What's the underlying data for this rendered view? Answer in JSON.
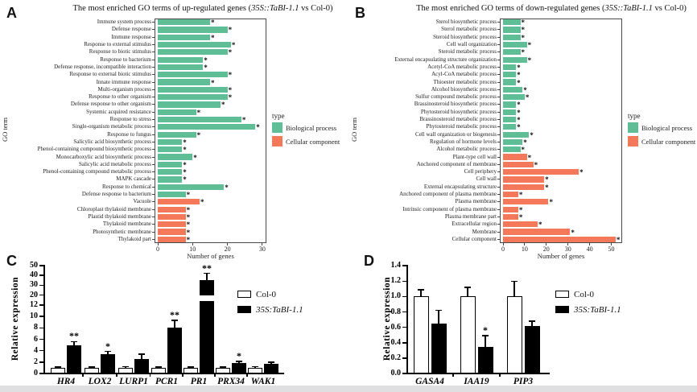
{
  "figure": {
    "bottom_strip_color": "#dfdfe1"
  },
  "colors": {
    "biological_process": "#5FBE96",
    "cellular_component": "#F4785A",
    "bar_black": "#000000",
    "bar_white": "#ffffff"
  },
  "panels": {
    "a": {
      "label": "A",
      "title_prefix": "The most enriched GO terms of up-regulated genes (",
      "title_italic": "35S::TaBI-1.1",
      "title_suffix": " vs Col-0)",
      "ylabel": "GO term",
      "xlabel": "Number of genes",
      "legend": {
        "title": "type",
        "items": [
          {
            "label": "Biological process",
            "color": "#5FBE96"
          },
          {
            "label": "Cellular component",
            "color": "#F4785A"
          }
        ]
      }
    },
    "b": {
      "label": "B",
      "title_prefix": "The most enriched GO terms of down-regulated genes (",
      "title_italic": "35S::TaBI-1.1",
      "title_suffix": " vs Col-0)",
      "ylabel": "GO term",
      "xlabel": "Number of genes",
      "legend": {
        "title": "type",
        "items": [
          {
            "label": "Biological process",
            "color": "#5FBE96"
          },
          {
            "label": "Cellular component",
            "color": "#F4785A"
          }
        ]
      }
    },
    "c": {
      "label": "C",
      "ylabel": "Relative expression",
      "legend": {
        "items": [
          {
            "label": "Col-0"
          },
          {
            "label": "35S:TaBI-1.1"
          }
        ]
      }
    },
    "d": {
      "label": "D",
      "ylabel": "Relative expression",
      "legend": {
        "items": [
          {
            "label": "Col-0"
          },
          {
            "label": "35S:TaBI-1.1"
          }
        ]
      }
    }
  },
  "chart_data": [
    {
      "panel": "A",
      "type": "bar",
      "orientation": "horizontal",
      "title": "The most enriched GO terms of up-regulated genes (35S::TaBI-1.1 vs Col-0)",
      "xlabel": "Number of genes",
      "ylabel": "GO term",
      "xlim": [
        0,
        30
      ],
      "xticks": [
        0,
        10,
        20,
        30
      ],
      "legend_title": "type",
      "rows": [
        {
          "label": "Immune system process",
          "value": 15,
          "type": "Biological process",
          "sig": "*"
        },
        {
          "label": "Defense response",
          "value": 20,
          "type": "Biological process",
          "sig": "*"
        },
        {
          "label": "Immune response",
          "value": 15,
          "type": "Biological process",
          "sig": "*"
        },
        {
          "label": "Response to external stimulus",
          "value": 21,
          "type": "Biological process",
          "sig": "*"
        },
        {
          "label": "Response to biotic stimulus",
          "value": 20,
          "type": "Biological process",
          "sig": "*"
        },
        {
          "label": "Response to bacterium",
          "value": 13,
          "type": "Biological process",
          "sig": "*"
        },
        {
          "label": "Defense response, incompatible interaction",
          "value": 13,
          "type": "Biological process",
          "sig": "*"
        },
        {
          "label": "Response to external biotic stimulus",
          "value": 20,
          "type": "Biological process",
          "sig": "*"
        },
        {
          "label": "Innate immune response",
          "value": 15,
          "type": "Biological process",
          "sig": "*"
        },
        {
          "label": "Multi-organism process",
          "value": 20,
          "type": "Biological process",
          "sig": "*"
        },
        {
          "label": "Response to other organism",
          "value": 20,
          "type": "Biological process",
          "sig": "*"
        },
        {
          "label": "Defense response to other organism",
          "value": 18,
          "type": "Biological process",
          "sig": "*"
        },
        {
          "label": "Systemic acquired resistance",
          "value": 11,
          "type": "Biological process",
          "sig": "*"
        },
        {
          "label": "Response to stress",
          "value": 24,
          "type": "Biological process",
          "sig": "*"
        },
        {
          "label": "Single-organism metabolic process",
          "value": 28,
          "type": "Biological process",
          "sig": "*"
        },
        {
          "label": "Response to fungus",
          "value": 11,
          "type": "Biological process",
          "sig": "*"
        },
        {
          "label": "Salicylic acid biosynthetic process",
          "value": 7,
          "type": "Biological process",
          "sig": "*"
        },
        {
          "label": "Phenol-containing compound biosynthetic process",
          "value": 7,
          "type": "Biological process",
          "sig": "*"
        },
        {
          "label": "Monocarboxylic acid biosynthetic process",
          "value": 10,
          "type": "Biological process",
          "sig": "*"
        },
        {
          "label": "Salicylic acid metabolic process",
          "value": 7,
          "type": "Biological process",
          "sig": "*"
        },
        {
          "label": "Phenol-containing compound metabolic process",
          "value": 7,
          "type": "Biological process",
          "sig": "*"
        },
        {
          "label": "MAPK cascade",
          "value": 7,
          "type": "Biological process",
          "sig": "*"
        },
        {
          "label": "Response to chemical",
          "value": 19,
          "type": "Biological process",
          "sig": "*"
        },
        {
          "label": "Defense response to bacterium",
          "value": 8,
          "type": "Biological process",
          "sig": "*"
        },
        {
          "label": "Vacuole",
          "value": 12,
          "type": "Cellular component",
          "sig": "*"
        },
        {
          "label": "Chloroplast thylakoid membrane",
          "value": 8,
          "type": "Cellular component",
          "sig": "*"
        },
        {
          "label": "Plastid thylakoid membrane",
          "value": 8,
          "type": "Cellular component",
          "sig": "*"
        },
        {
          "label": "Thylakoid membrane",
          "value": 8,
          "type": "Cellular component",
          "sig": "*"
        },
        {
          "label": "Photosynthetic membrane",
          "value": 8,
          "type": "Cellular component",
          "sig": "*"
        },
        {
          "label": "Thylakoid part",
          "value": 8,
          "type": "Cellular component",
          "sig": "*"
        }
      ]
    },
    {
      "panel": "B",
      "type": "bar",
      "orientation": "horizontal",
      "title": "The most enriched GO terms of down-regulated genes (35S::TaBI-1.1 vs Col-0)",
      "xlabel": "Number of genes",
      "ylabel": "GO term",
      "xlim": [
        0,
        55
      ],
      "xticks": [
        0,
        10,
        20,
        30,
        40,
        50
      ],
      "legend_title": "type",
      "rows": [
        {
          "label": "Sterol biosynthetic process",
          "value": 8,
          "type": "Biological process",
          "sig": "*"
        },
        {
          "label": "Sterol metabolic process",
          "value": 8,
          "type": "Biological process",
          "sig": "*"
        },
        {
          "label": "Steroid biosynthetic process",
          "value": 8,
          "type": "Biological process",
          "sig": "*"
        },
        {
          "label": "Cell wall organization",
          "value": 11,
          "type": "Biological process",
          "sig": "*"
        },
        {
          "label": "Steroid metabolic process",
          "value": 8,
          "type": "Biological process",
          "sig": "*"
        },
        {
          "label": "External encapsulating structure organization",
          "value": 11,
          "type": "Biological process",
          "sig": "*"
        },
        {
          "label": "Acetyl-CoA metabolic process",
          "value": 6,
          "type": "Biological process",
          "sig": "*"
        },
        {
          "label": "Acyl-CoA metabolic process",
          "value": 6,
          "type": "Biological process",
          "sig": "*"
        },
        {
          "label": "Thioester metabolic process",
          "value": 6,
          "type": "Biological process",
          "sig": "*"
        },
        {
          "label": "Alcohol biosynthetic process",
          "value": 9,
          "type": "Biological process",
          "sig": "*"
        },
        {
          "label": "Sulfur compound metabolic process",
          "value": 10,
          "type": "Biological process",
          "sig": "*"
        },
        {
          "label": "Brassinosteroid biosynthetic process",
          "value": 6,
          "type": "Biological process",
          "sig": "*"
        },
        {
          "label": "Phytosteroid biosynthetic process",
          "value": 6,
          "type": "Biological process",
          "sig": "*"
        },
        {
          "label": "Brassinosteroid metabolic process",
          "value": 6,
          "type": "Biological process",
          "sig": "*"
        },
        {
          "label": "Phytosteroid metabolic process",
          "value": 6,
          "type": "Biological process",
          "sig": "*"
        },
        {
          "label": "Cell wall organization or biogenesis",
          "value": 12,
          "type": "Biological process",
          "sig": "*"
        },
        {
          "label": "Regulation of hormone levels",
          "value": 9,
          "type": "Biological process",
          "sig": "*"
        },
        {
          "label": "Alcohol metabolic process",
          "value": 8,
          "type": "Biological process",
          "sig": "*"
        },
        {
          "label": "Plant-type cell wall",
          "value": 11,
          "type": "Cellular component",
          "sig": "*"
        },
        {
          "label": "Anchored component of membrane",
          "value": 14,
          "type": "Cellular component",
          "sig": "*"
        },
        {
          "label": "Cell periphery",
          "value": 35,
          "type": "Cellular component",
          "sig": "*"
        },
        {
          "label": "Cell wall",
          "value": 19,
          "type": "Cellular component",
          "sig": "*"
        },
        {
          "label": "External encapsulating structure",
          "value": 19,
          "type": "Cellular component",
          "sig": "*"
        },
        {
          "label": "Anchored component of plasma membrane",
          "value": 7,
          "type": "Cellular component",
          "sig": "*"
        },
        {
          "label": "Plasma membrane",
          "value": 21,
          "type": "Cellular component",
          "sig": "*"
        },
        {
          "label": "Intrinsic component of plasma membrane",
          "value": 7,
          "type": "Cellular component",
          "sig": "*"
        },
        {
          "label": "Plasma membrane part",
          "value": 7,
          "type": "Cellular component",
          "sig": "*"
        },
        {
          "label": "Extracellular region",
          "value": 16,
          "type": "Cellular component",
          "sig": "*"
        },
        {
          "label": "Membrane",
          "value": 31,
          "type": "Cellular component",
          "sig": "*"
        },
        {
          "label": "Cellular component",
          "value": 52,
          "type": "Cellular component",
          "sig": "*"
        }
      ]
    },
    {
      "panel": "C",
      "type": "bar",
      "orientation": "vertical",
      "ylabel": "Relative expression",
      "categories": [
        "HR4",
        "LOX2",
        "LURP1",
        "PCR1",
        "PR1",
        "PRX34",
        "WAK1"
      ],
      "series": [
        {
          "name": "Col-0",
          "fill": "white",
          "values": [
            1.0,
            1.0,
            1.0,
            1.0,
            1.0,
            1.0,
            1.0
          ],
          "errors": [
            0.15,
            0.15,
            0.2,
            0.1,
            0.15,
            0.15,
            0.2
          ]
        },
        {
          "name": "35S:TaBI-1.1",
          "fill": "black",
          "values": [
            5.0,
            3.4,
            2.6,
            8.0,
            35,
            1.9,
            1.75
          ],
          "errors": [
            0.6,
            0.45,
            0.8,
            1.3,
            7,
            0.25,
            0.2
          ]
        }
      ],
      "significance": [
        "**",
        "*",
        "",
        "**",
        "**",
        "*",
        ""
      ],
      "yaxis": {
        "broken": true,
        "segments": [
          {
            "ticks": [
              0,
              2,
              4,
              6,
              8,
              10,
              12
            ],
            "labels": [
              "0",
              "2",
              "4",
              "6",
              "8",
              "10",
              "12"
            ]
          },
          {
            "ticks": [
              20,
              30,
              40,
              50
            ],
            "labels": [
              "20",
              "30",
              "40",
              "50"
            ]
          }
        ]
      }
    },
    {
      "panel": "D",
      "type": "bar",
      "orientation": "vertical",
      "ylabel": "Relative expression",
      "categories": [
        "GASA4",
        "IAA19",
        "PIP3"
      ],
      "series": [
        {
          "name": "Col-0",
          "fill": "white",
          "values": [
            1.0,
            1.0,
            1.0
          ],
          "errors": [
            0.09,
            0.12,
            0.2
          ]
        },
        {
          "name": "35S:TaBI-1.1",
          "fill": "black",
          "values": [
            0.65,
            0.35,
            0.62
          ],
          "errors": [
            0.17,
            0.14,
            0.06
          ]
        }
      ],
      "significance": [
        "",
        "*",
        ""
      ],
      "yaxis": {
        "broken": false,
        "segments": [
          {
            "ticks": [
              0,
              0.2,
              0.4,
              0.6,
              0.8,
              1.0,
              1.2,
              1.4
            ],
            "labels": [
              "0.0",
              "0.2",
              "0.4",
              "0.6",
              "0.8",
              "1.0",
              "1.2",
              "1.4"
            ]
          }
        ]
      }
    }
  ]
}
